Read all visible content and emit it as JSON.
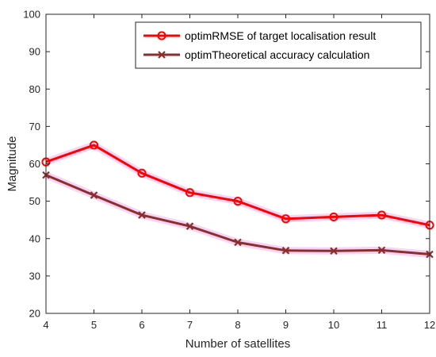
{
  "chart_data": {
    "type": "line",
    "title": "",
    "xlabel": "Number of satellites",
    "ylabel": "Magnitude",
    "x": [
      4,
      5,
      6,
      7,
      8,
      9,
      10,
      11,
      12
    ],
    "xlim": [
      4,
      12
    ],
    "ylim": [
      20,
      100
    ],
    "xticks": [
      4,
      5,
      6,
      7,
      8,
      9,
      10,
      11,
      12
    ],
    "yticks": [
      20,
      30,
      40,
      50,
      60,
      70,
      80,
      90,
      100
    ],
    "grid": false,
    "legend_position": "top-right",
    "series": [
      {
        "name": "optimRMSE of target localisation result",
        "values": [
          60.5,
          65.0,
          57.5,
          52.3,
          50.0,
          45.3,
          45.8,
          46.3,
          43.6
        ],
        "color": "#ff0000",
        "marker": "circle"
      },
      {
        "name": "optimTheoretical accuracy calculation",
        "values": [
          57.0,
          51.6,
          46.3,
          43.3,
          39.0,
          36.8,
          36.7,
          36.9,
          35.8
        ],
        "color": "#8b2e2e",
        "marker": "x"
      }
    ]
  }
}
